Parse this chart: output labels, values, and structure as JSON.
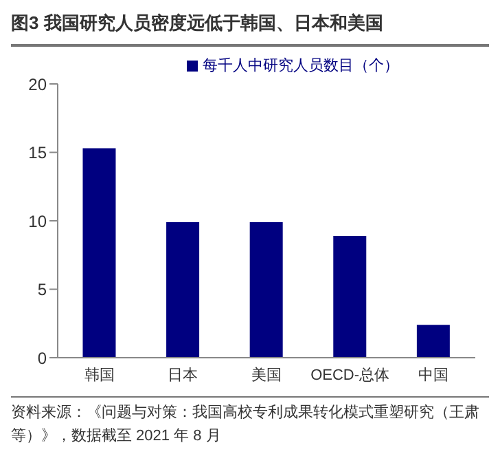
{
  "chart_data": {
    "type": "bar",
    "title": "图3  我国研究人员密度远低于韩国、日本和美国",
    "categories": [
      "韩国",
      "日本",
      "美国",
      "OECD-总体",
      "中国"
    ],
    "series": [
      {
        "name": "每千人中研究人员数目（个）",
        "color": "#000080",
        "values": [
          15.3,
          9.9,
          9.9,
          8.9,
          2.4
        ]
      }
    ],
    "ylim": [
      0,
      20
    ],
    "yticks": [
      0,
      5,
      10,
      15,
      20
    ],
    "grid": false,
    "legend": "top",
    "annotations": [
      "资料来源：《问题与对策：我国高校专利成果转化模式重塑研究（王肃等）》，数据截至 2021 年 8 月"
    ]
  }
}
